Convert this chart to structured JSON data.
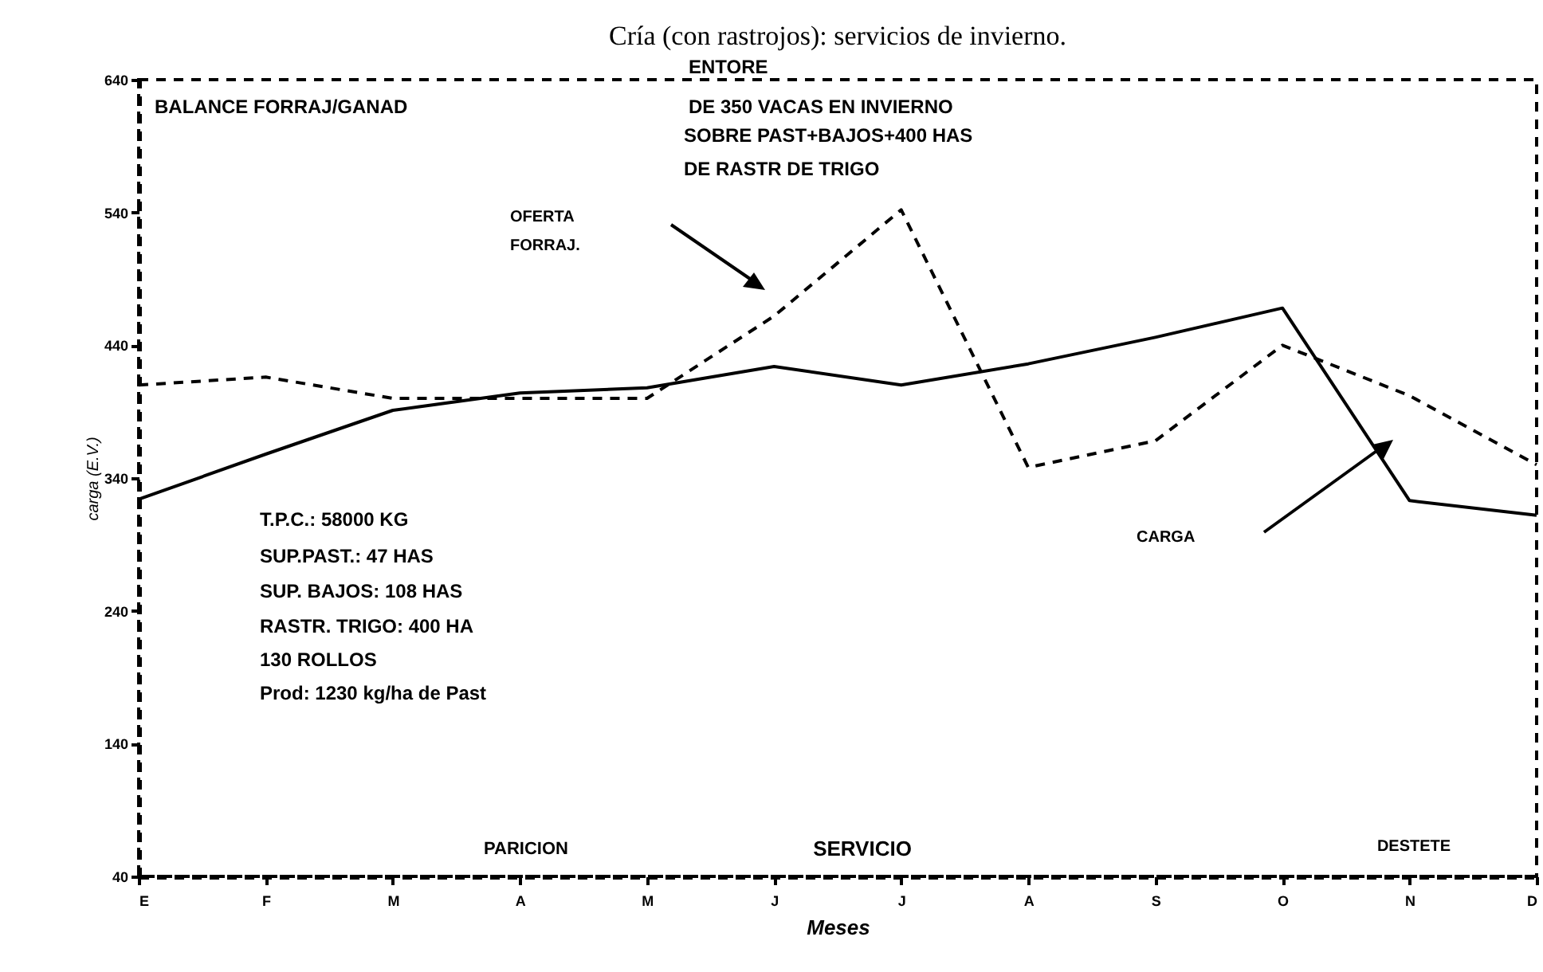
{
  "chart_data": {
    "type": "line",
    "title": "Cría (con rastrojos): servicios de invierno.",
    "xlabel": "Meses",
    "ylabel": "carga (E.V.)",
    "categories": [
      "E",
      "F",
      "M",
      "A",
      "M",
      "J",
      "J",
      "A",
      "S",
      "O",
      "N",
      "D"
    ],
    "series": [
      {
        "color": "#000000",
        "line_style": "dashed",
        "values": [
          410,
          416,
          400,
          400,
          400,
          462,
          542,
          348,
          368,
          440,
          402,
          350
        ]
      },
      {
        "color": "#000000",
        "line_style": "solid",
        "values": [
          324,
          358,
          391,
          404,
          408,
          424,
          410,
          426,
          446,
          468,
          323,
          312
        ]
      }
    ],
    "ylim": [
      40,
      640
    ],
    "yticks": [
      40,
      140,
      240,
      340,
      440,
      540,
      640
    ],
    "grid": false,
    "marker": "none",
    "annotations": [
      "BALANCE FORRAJ/GANAD",
      "ENTORE",
      "DE 350 VACAS EN INVIERNO",
      "SOBRE PAST+BAJOS+400 HAS",
      "DE RASTR DE TRIGO",
      "T.P.C.: 58000 KG",
      "SUP.PAST.: 47 HAS",
      "SUP. BAJOS: 108 HAS",
      "RASTR. TRIGO: 400 HA",
      "130 ROLLOS",
      "Prod: 1230 kg/ha de Past",
      "PARICION",
      "SERVICIO",
      "DESTETE",
      "OFERTA",
      "FORRAJ.",
      "CARGA"
    ]
  }
}
